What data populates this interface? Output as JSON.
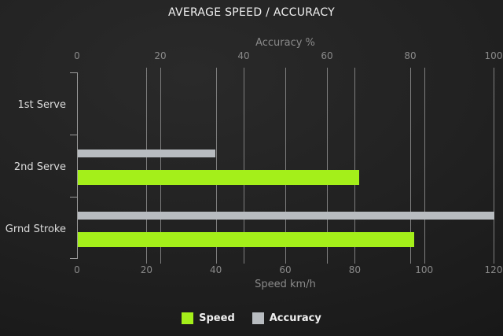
{
  "title": "AVERAGE SPEED / ACCURACY",
  "colors": {
    "background": "#212121",
    "speed": "#a4ef1a",
    "accuracy": "#b8bcc0",
    "gridline": "#7f7f7f",
    "axis": "#9a9a9a",
    "muted_text": "#8a8a8a",
    "category_text": "#dcdcdc",
    "title_text": "#f0f0f0"
  },
  "chart_data": {
    "type": "bar",
    "orientation": "horizontal",
    "title": "AVERAGE SPEED / ACCURACY",
    "categories": [
      "1st Serve",
      "2nd Serve",
      "Grnd Stroke"
    ],
    "series": [
      {
        "name": "Speed",
        "axis": "bottom",
        "color": "#a4ef1a",
        "values": [
          0,
          81,
          97
        ]
      },
      {
        "name": "Accuracy",
        "axis": "top",
        "color": "#b8bcc0",
        "values": [
          0,
          33,
          100
        ]
      }
    ],
    "top_axis": {
      "label": "Accuracy %",
      "min": 0,
      "max": 100,
      "ticks": [
        0,
        20,
        40,
        60,
        80,
        100
      ]
    },
    "bottom_axis": {
      "label": "Speed km/h",
      "min": 0,
      "max": 120,
      "ticks": [
        0,
        20,
        40,
        60,
        80,
        100,
        120
      ]
    },
    "grid": true,
    "legend_position": "bottom"
  }
}
